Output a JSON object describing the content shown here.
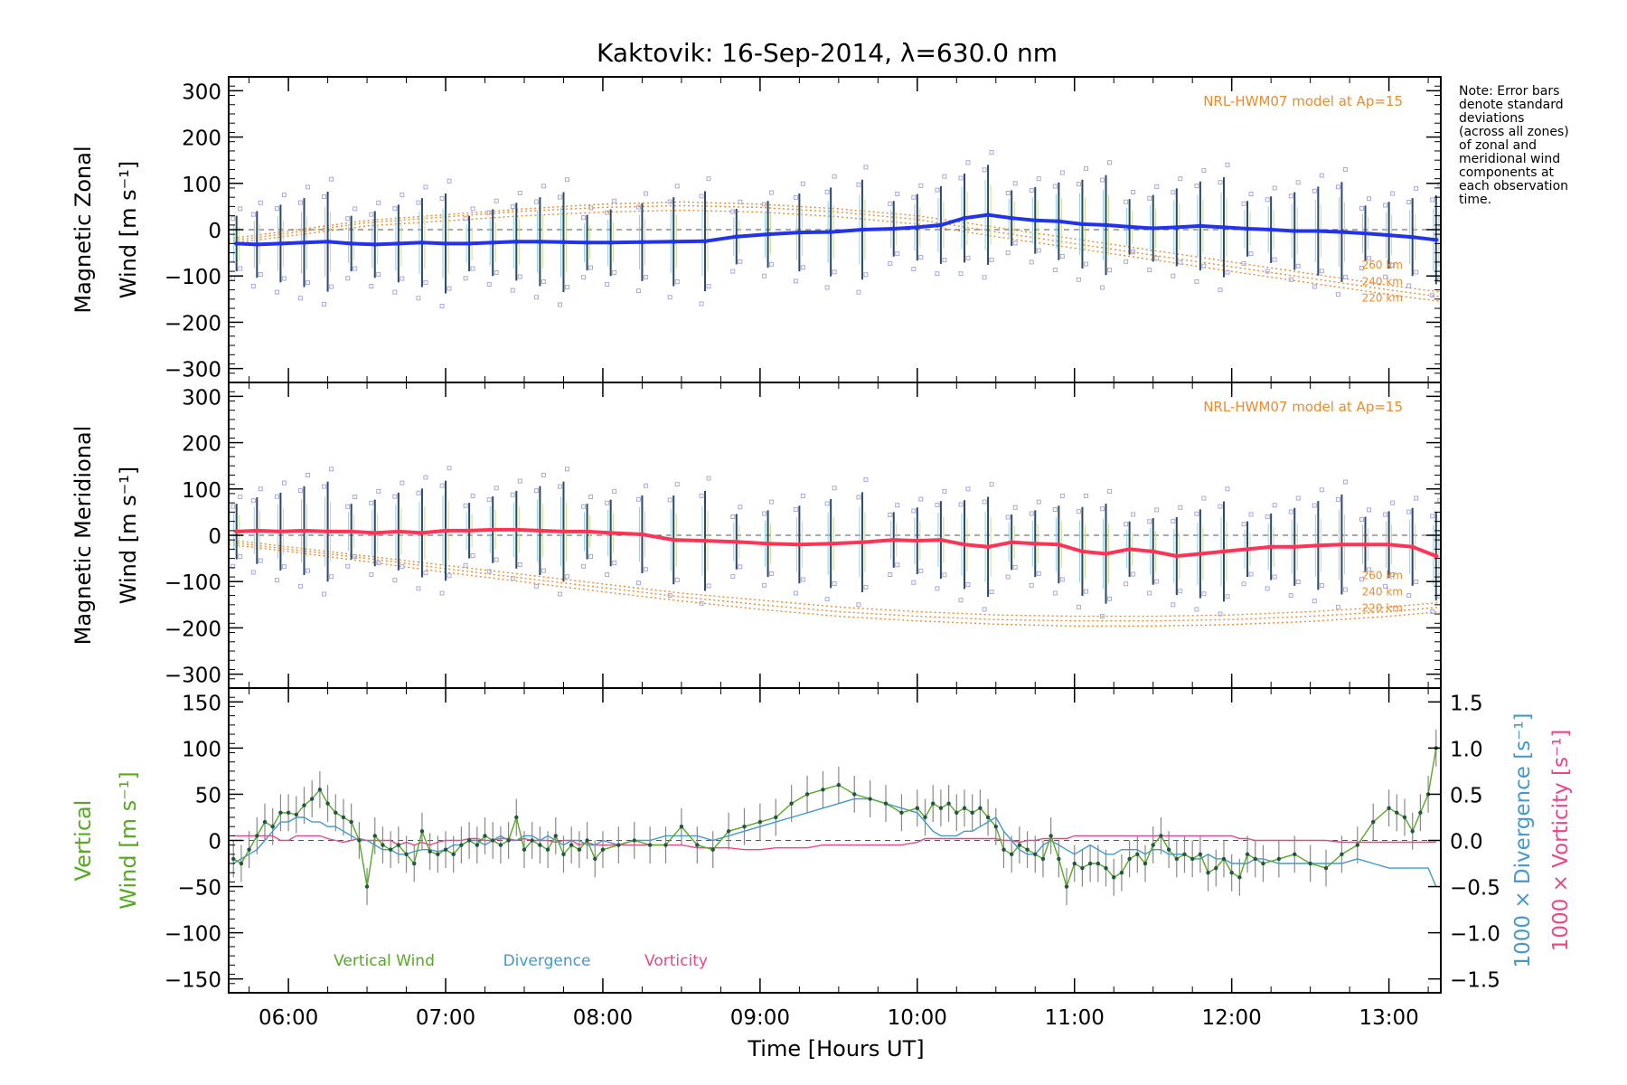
{
  "title": "Kaktovik: 16-Sep-2014, λ=630.0 nm",
  "note_lines": [
    "Note: Error bars",
    "denote standard",
    "deviations",
    "(across all zones)",
    "of zonal and",
    "meridional wind",
    "components at",
    "each observation",
    "time."
  ],
  "x_axis": {
    "label": "Time [Hours UT]",
    "range": [
      5.62,
      13.33
    ],
    "ticks": [
      6,
      7,
      8,
      9,
      10,
      11,
      12,
      13
    ],
    "tick_labels": [
      "06:00",
      "07:00",
      "08:00",
      "09:00",
      "10:00",
      "11:00",
      "12:00",
      "13:00"
    ]
  },
  "colors": {
    "zonal": "#2233ee",
    "meridional": "#ff3355",
    "model": "#f08a2a",
    "samples": "#a8a8dd",
    "vertical": "#55aa22",
    "divergence": "#4499cc",
    "vorticity": "#ee4488",
    "errorbar": "#444444"
  },
  "chart_data": [
    {
      "type": "line",
      "panel": "zonal",
      "ylabel_line1": "Magnetic Zonal",
      "ylabel_line2": "Wind [m s⁻¹]",
      "ylim": [
        -330,
        330
      ],
      "yticks": [
        -300,
        -200,
        -100,
        0,
        100,
        200,
        300
      ],
      "model_label": "NRL-HWM07 model at Ap=15",
      "model_heights": [
        "260 km",
        "240 km",
        "220 km"
      ],
      "model_x": [
        5.62,
        6.5,
        7.5,
        8.0,
        8.5,
        9.0,
        9.5,
        10.0,
        10.5,
        11.0,
        11.5,
        12.0,
        12.5,
        13.0,
        13.33
      ],
      "model_curves": [
        [
          -20,
          20,
          45,
          55,
          60,
          55,
          45,
          30,
          5,
          -20,
          -45,
          -70,
          -95,
          -120,
          -135
        ],
        [
          -25,
          15,
          40,
          48,
          52,
          48,
          38,
          22,
          -5,
          -30,
          -55,
          -80,
          -105,
          -130,
          -145
        ],
        [
          -30,
          8,
          30,
          38,
          42,
          38,
          28,
          12,
          -15,
          -40,
          -65,
          -90,
          -115,
          -140,
          -155
        ]
      ],
      "x": [
        5.67,
        5.8,
        5.95,
        6.1,
        6.25,
        6.4,
        6.55,
        6.7,
        6.85,
        7.0,
        7.15,
        7.3,
        7.45,
        7.6,
        7.75,
        7.9,
        8.05,
        8.25,
        8.45,
        8.65,
        8.85,
        9.05,
        9.25,
        9.45,
        9.65,
        9.85,
        10.0,
        10.15,
        10.3,
        10.45,
        10.6,
        10.75,
        10.9,
        11.05,
        11.2,
        11.35,
        11.5,
        11.65,
        11.8,
        11.95,
        12.1,
        12.25,
        12.4,
        12.55,
        12.7,
        12.85,
        13.0,
        13.15,
        13.3
      ],
      "series": [
        {
          "values": [
            -30,
            -32,
            -30,
            -28,
            -26,
            -30,
            -32,
            -30,
            -28,
            -30,
            -30,
            -28,
            -26,
            -26,
            -27,
            -28,
            -28,
            -27,
            -26,
            -25,
            -15,
            -10,
            -6,
            -5,
            0,
            2,
            5,
            10,
            25,
            32,
            25,
            20,
            18,
            12,
            10,
            6,
            3,
            5,
            8,
            5,
            2,
            0,
            -3,
            -3,
            -5,
            -8,
            -12,
            -16,
            -22
          ]
        }
      ]
    },
    {
      "type": "line",
      "panel": "meridional",
      "ylabel_line1": "Magnetic Meridional",
      "ylabel_line2": "Wind [m s⁻¹]",
      "ylim": [
        -330,
        330
      ],
      "yticks": [
        -300,
        -200,
        -100,
        0,
        100,
        200,
        300
      ],
      "model_label": "NRL-HWM07 model at Ap=15",
      "model_heights": [
        "260 km",
        "240 km",
        "220 km"
      ],
      "model_x": [
        5.62,
        6.0,
        6.5,
        7.0,
        7.5,
        8.0,
        8.5,
        9.0,
        9.5,
        10.0,
        10.5,
        11.0,
        11.5,
        12.0,
        12.5,
        13.0,
        13.33
      ],
      "model_curves": [
        [
          -10,
          -25,
          -45,
          -65,
          -85,
          -105,
          -125,
          -140,
          -155,
          -165,
          -172,
          -175,
          -175,
          -172,
          -165,
          -155,
          -145
        ],
        [
          -15,
          -30,
          -50,
          -72,
          -93,
          -113,
          -133,
          -150,
          -165,
          -175,
          -182,
          -185,
          -185,
          -182,
          -175,
          -165,
          -155
        ],
        [
          -20,
          -35,
          -57,
          -80,
          -101,
          -122,
          -142,
          -160,
          -175,
          -185,
          -192,
          -196,
          -196,
          -193,
          -186,
          -175,
          -165
        ]
      ],
      "x": [
        5.67,
        5.8,
        5.95,
        6.1,
        6.25,
        6.4,
        6.55,
        6.7,
        6.85,
        7.0,
        7.15,
        7.3,
        7.45,
        7.6,
        7.75,
        7.9,
        8.05,
        8.25,
        8.45,
        8.65,
        8.85,
        9.05,
        9.25,
        9.45,
        9.65,
        9.85,
        10.0,
        10.15,
        10.3,
        10.45,
        10.6,
        10.75,
        10.9,
        11.05,
        11.2,
        11.35,
        11.5,
        11.65,
        11.8,
        11.95,
        12.1,
        12.25,
        12.4,
        12.55,
        12.7,
        12.85,
        13.0,
        13.15,
        13.3
      ],
      "series": [
        {
          "values": [
            8,
            10,
            8,
            10,
            8,
            8,
            5,
            8,
            5,
            10,
            10,
            12,
            12,
            10,
            8,
            8,
            5,
            2,
            -10,
            -12,
            -14,
            -18,
            -20,
            -18,
            -15,
            -10,
            -12,
            -10,
            -20,
            -25,
            -15,
            -18,
            -20,
            -35,
            -40,
            -30,
            -35,
            -45,
            -40,
            -35,
            -30,
            -25,
            -25,
            -22,
            -20,
            -20,
            -20,
            -25,
            -45
          ]
        }
      ]
    },
    {
      "type": "line",
      "panel": "vertical",
      "ylabel_line1": "Vertical",
      "ylabel_line2": "Wind [m s⁻¹]",
      "ylim": [
        -165,
        165
      ],
      "yticks": [
        -150,
        -100,
        -50,
        0,
        50,
        100,
        150
      ],
      "y2_label_divergence": "1000 × Divergence [s⁻¹]",
      "y2_label_vorticity": "1000 × Vorticity [s⁻¹]",
      "y2lim": [
        -1.65,
        1.65
      ],
      "y2ticks": [
        -1.5,
        -1.0,
        -0.5,
        0.0,
        0.5,
        1.0,
        1.5
      ],
      "y2tick_labels": [
        "−1.5",
        "−1.0",
        "−0.5",
        "0.0",
        "0.5",
        "1.0",
        "1.5"
      ],
      "legend": [
        "Vertical Wind",
        "Divergence",
        "Vorticity"
      ],
      "x": [
        5.65,
        5.7,
        5.75,
        5.8,
        5.85,
        5.9,
        5.95,
        6.0,
        6.05,
        6.1,
        6.15,
        6.2,
        6.25,
        6.3,
        6.35,
        6.4,
        6.45,
        6.5,
        6.55,
        6.6,
        6.65,
        6.7,
        6.75,
        6.8,
        6.85,
        6.9,
        6.95,
        7.0,
        7.05,
        7.1,
        7.15,
        7.2,
        7.25,
        7.3,
        7.35,
        7.4,
        7.45,
        7.5,
        7.55,
        7.6,
        7.65,
        7.7,
        7.75,
        7.8,
        7.85,
        7.9,
        7.95,
        8.0,
        8.1,
        8.2,
        8.3,
        8.4,
        8.5,
        8.6,
        8.7,
        8.8,
        8.9,
        9.0,
        9.1,
        9.2,
        9.3,
        9.4,
        9.5,
        9.6,
        9.7,
        9.8,
        9.9,
        10.0,
        10.05,
        10.1,
        10.15,
        10.2,
        10.25,
        10.3,
        10.35,
        10.4,
        10.45,
        10.5,
        10.55,
        10.6,
        10.65,
        10.7,
        10.75,
        10.8,
        10.85,
        10.9,
        10.95,
        11.0,
        11.05,
        11.1,
        11.15,
        11.2,
        11.25,
        11.3,
        11.35,
        11.4,
        11.45,
        11.5,
        11.55,
        11.6,
        11.65,
        11.7,
        11.75,
        11.8,
        11.85,
        11.9,
        11.95,
        12.0,
        12.05,
        12.1,
        12.15,
        12.2,
        12.3,
        12.4,
        12.5,
        12.6,
        12.7,
        12.8,
        12.9,
        13.0,
        13.05,
        13.1,
        13.15,
        13.2,
        13.25,
        13.3
      ],
      "series": [
        {
          "name": "Vertical Wind",
          "values": [
            -20,
            -25,
            -10,
            5,
            20,
            15,
            30,
            30,
            28,
            38,
            45,
            55,
            40,
            30,
            25,
            20,
            0,
            -50,
            5,
            -5,
            -10,
            -5,
            -15,
            -25,
            10,
            -12,
            -15,
            -10,
            -15,
            -5,
            0,
            -5,
            5,
            0,
            -5,
            0,
            25,
            -10,
            0,
            -5,
            -10,
            5,
            -15,
            -5,
            -10,
            0,
            -20,
            -10,
            -5,
            0,
            -5,
            -5,
            15,
            -5,
            -10,
            10,
            15,
            20,
            25,
            40,
            50,
            55,
            60,
            50,
            45,
            40,
            30,
            35,
            25,
            40,
            35,
            40,
            30,
            35,
            30,
            35,
            25,
            15,
            -10,
            -15,
            -5,
            -10,
            -15,
            -20,
            5,
            -20,
            -50,
            -25,
            -30,
            -25,
            -25,
            -30,
            -40,
            -35,
            -20,
            -15,
            -25,
            -5,
            5,
            -10,
            -20,
            -15,
            -20,
            -15,
            -35,
            -30,
            -20,
            -35,
            -40,
            -15,
            -20,
            -25,
            -20,
            -15,
            -25,
            -30,
            -15,
            -5,
            20,
            35,
            30,
            25,
            10,
            30,
            50,
            100
          ]
        },
        {
          "name": "Divergence",
          "values": [
            -0.25,
            -0.2,
            -0.15,
            -0.1,
            0.0,
            0.1,
            0.2,
            0.2,
            0.25,
            0.25,
            0.2,
            0.2,
            0.15,
            0.15,
            0.1,
            0.05,
            0.0,
            0.0,
            -0.05,
            -0.1,
            -0.1,
            -0.15,
            -0.15,
            -0.12,
            -0.1,
            -0.1,
            -0.12,
            -0.1,
            -0.05,
            -0.05,
            0.0,
            0.0,
            -0.05,
            0.0,
            0.05,
            0.0,
            0.0,
            0.05,
            0.05,
            0.0,
            0.05,
            0.0,
            -0.05,
            0.0,
            0.0,
            -0.05,
            -0.05,
            0.0,
            -0.05,
            0.0,
            0.0,
            0.05,
            0.05,
            0.05,
            0.0,
            0.05,
            0.1,
            0.15,
            0.2,
            0.25,
            0.3,
            0.35,
            0.4,
            0.45,
            0.45,
            0.4,
            0.35,
            0.3,
            0.2,
            0.1,
            0.05,
            0.05,
            0.05,
            0.1,
            0.1,
            0.15,
            0.2,
            0.25,
            0.1,
            0.0,
            -0.1,
            -0.15,
            -0.15,
            -0.05,
            0.0,
            -0.05,
            -0.1,
            -0.15,
            -0.1,
            -0.05,
            -0.1,
            -0.15,
            -0.15,
            -0.1,
            -0.1,
            -0.1,
            -0.15,
            -0.1,
            -0.1,
            -0.15,
            -0.15,
            -0.15,
            -0.2,
            -0.2,
            -0.15,
            -0.2,
            -0.2,
            -0.25,
            -0.25,
            -0.25,
            -0.2,
            -0.2,
            -0.25,
            -0.25,
            -0.25,
            -0.25,
            -0.25,
            -0.2,
            -0.25,
            -0.3,
            -0.3,
            -0.3,
            -0.3,
            -0.3,
            -0.3,
            -0.5
          ]
        },
        {
          "name": "Vorticity",
          "values": [
            0.05,
            0.05,
            0.05,
            0.05,
            0.05,
            0.05,
            0.0,
            0.0,
            0.05,
            0.05,
            0.05,
            0.05,
            0.02,
            0.0,
            -0.02,
            0.0,
            0.02,
            0.0,
            0.0,
            0.0,
            0.0,
            -0.05,
            -0.02,
            -0.05,
            -0.02,
            -0.05,
            -0.02,
            0.0,
            0.0,
            0.0,
            0.02,
            0.02,
            0.0,
            0.0,
            0.02,
            0.02,
            0.0,
            0.02,
            0.0,
            0.0,
            0.0,
            -0.02,
            0.0,
            0.0,
            -0.05,
            -0.02,
            -0.05,
            -0.05,
            -0.05,
            -0.05,
            -0.05,
            -0.05,
            -0.05,
            -0.08,
            -0.08,
            -0.08,
            -0.1,
            -0.1,
            -0.08,
            -0.08,
            -0.08,
            -0.05,
            -0.05,
            -0.05,
            -0.05,
            -0.05,
            -0.05,
            -0.02,
            0.02,
            0.02,
            0.02,
            0.02,
            0.02,
            0.02,
            0.02,
            0.02,
            0.02,
            0.02,
            0.0,
            0.0,
            -0.02,
            0.0,
            0.0,
            0.02,
            0.02,
            0.02,
            0.02,
            0.05,
            0.05,
            0.05,
            0.05,
            0.05,
            0.05,
            0.05,
            0.05,
            0.05,
            0.05,
            0.05,
            0.05,
            0.05,
            0.05,
            0.05,
            0.05,
            0.05,
            0.05,
            0.05,
            0.05,
            0.05,
            0.02,
            0.02,
            0.0,
            0.0,
            0.0,
            0.0,
            0.0,
            0.0,
            -0.02,
            -0.02,
            -0.02,
            -0.02,
            -0.02,
            -0.02,
            -0.02,
            -0.02,
            -0.02,
            -0.02
          ]
        }
      ]
    }
  ]
}
